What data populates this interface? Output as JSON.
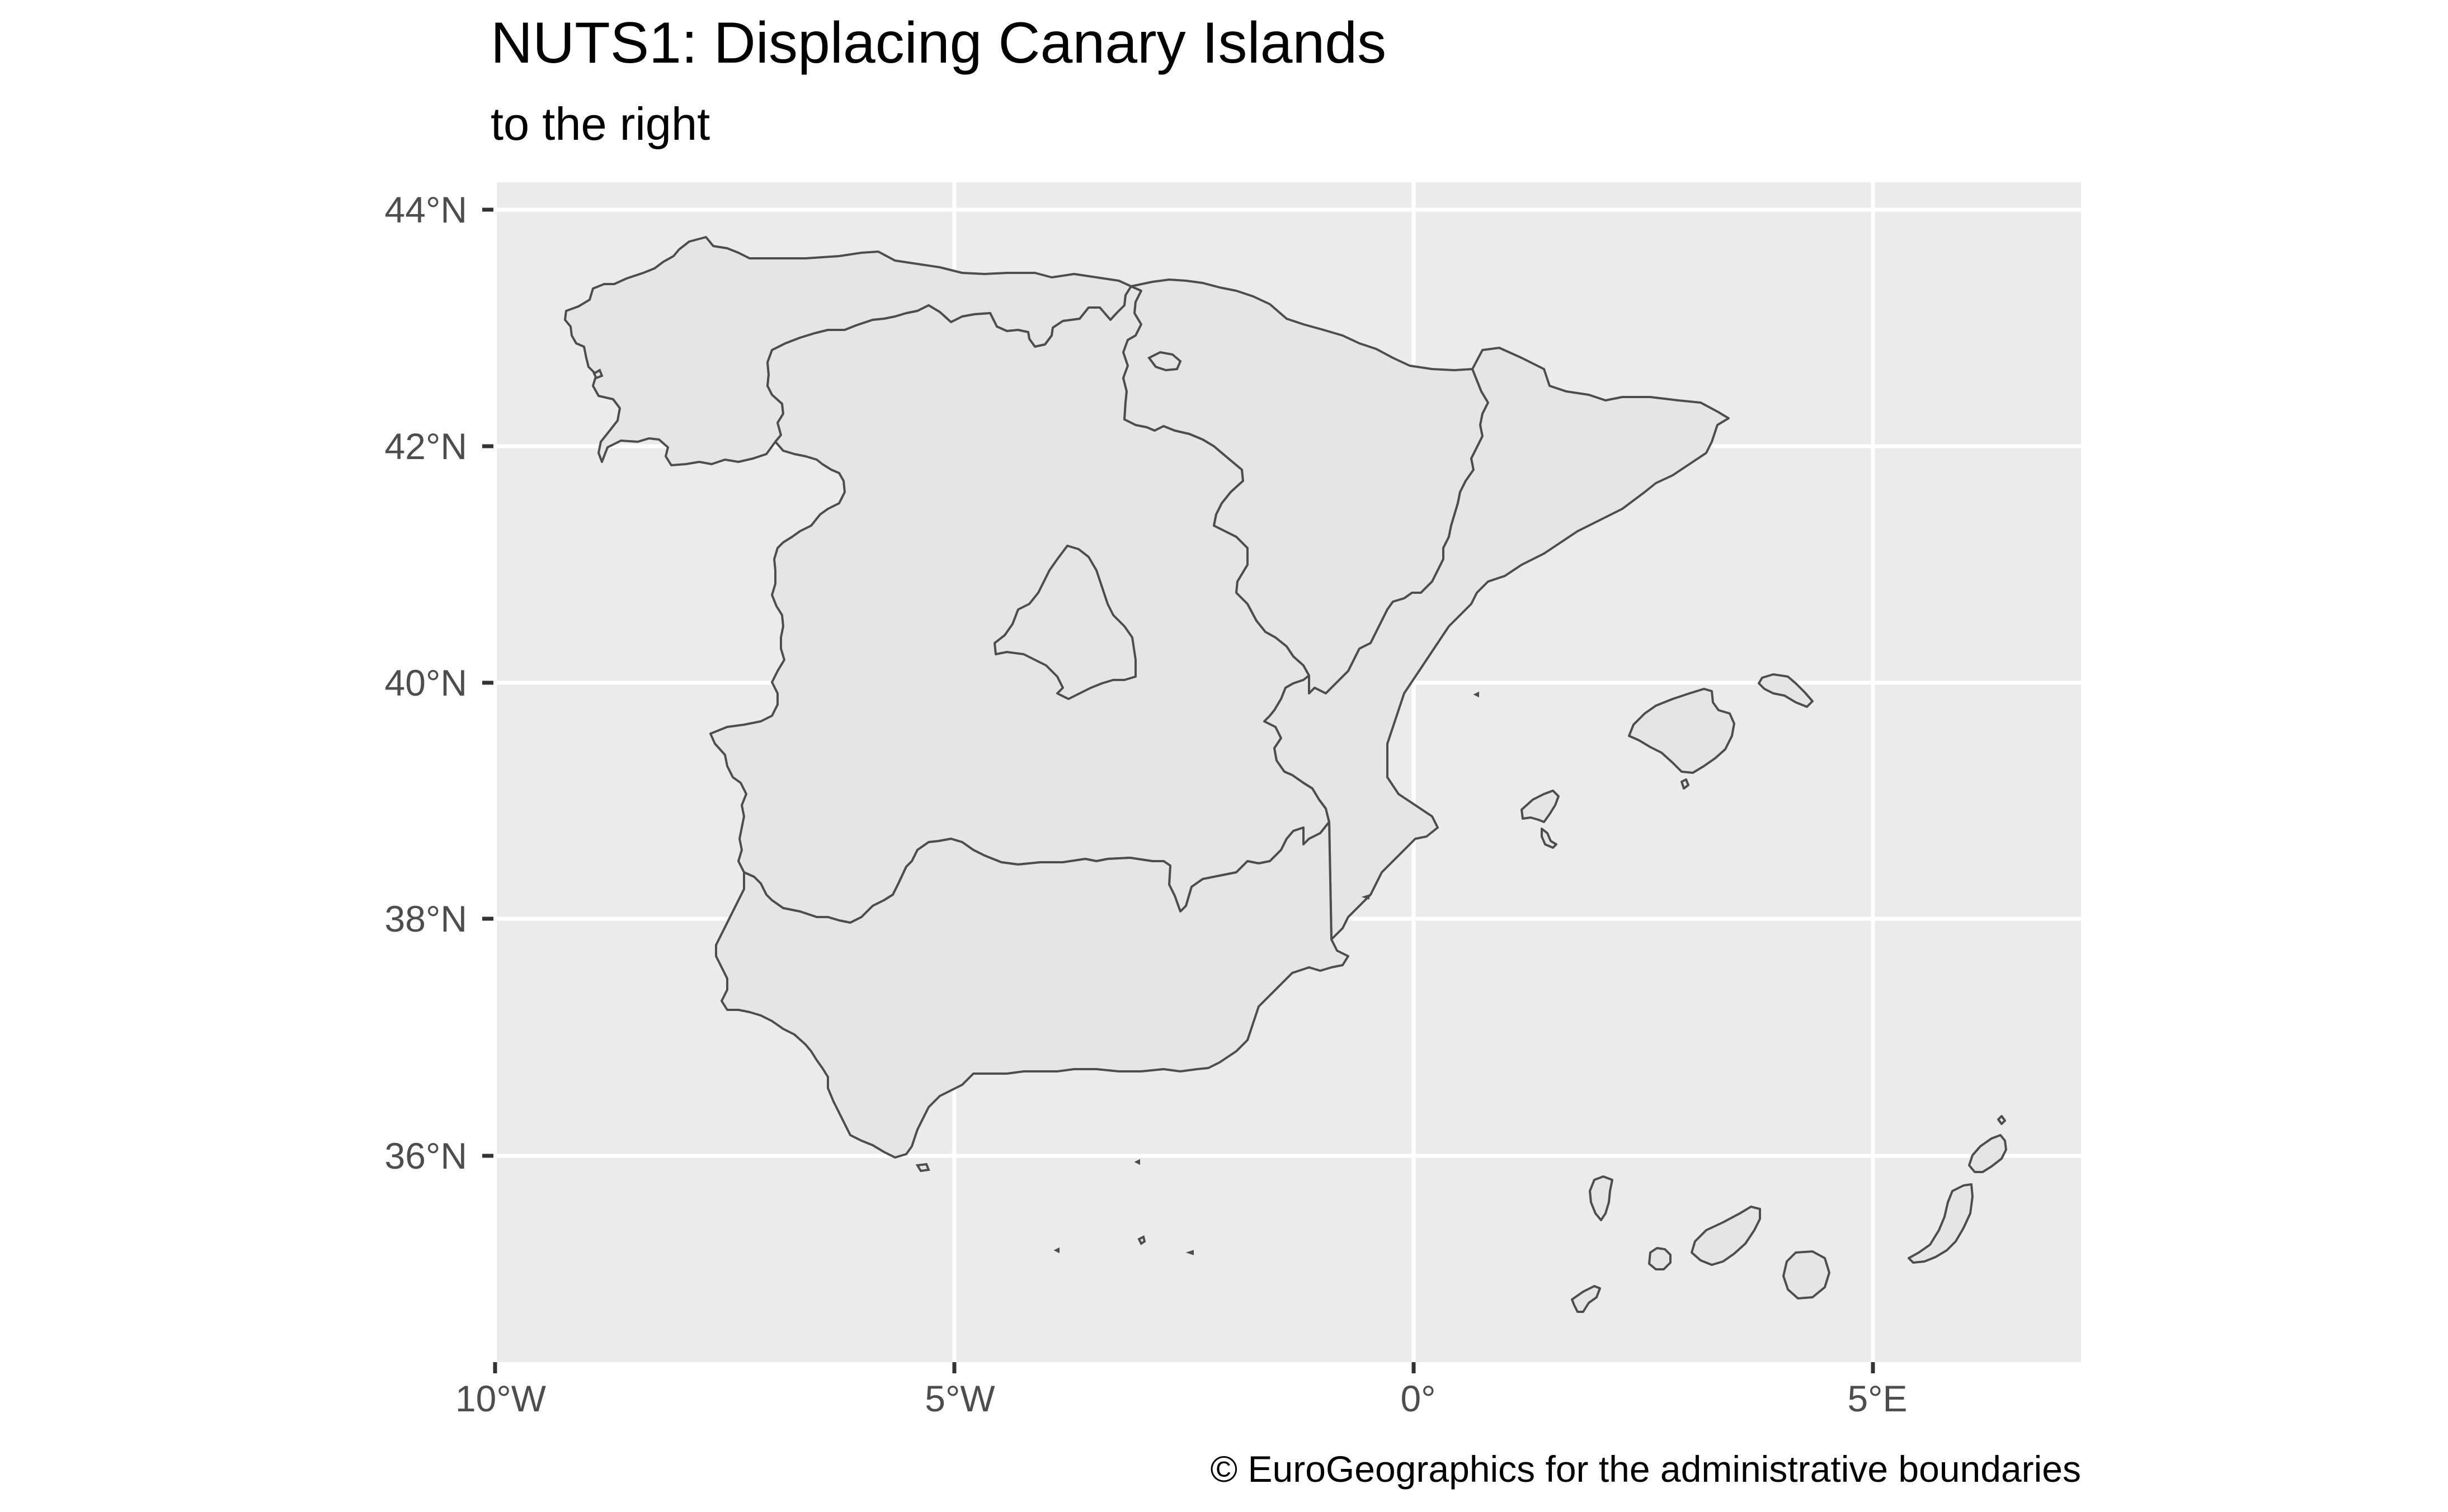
{
  "title": "NUTS1: Displacing Canary Islands",
  "subtitle": "to the right",
  "caption": "© EuroGeographics for the administrative boundaries",
  "axes": {
    "x_ticks": [
      "10°W",
      "5°W",
      "0°",
      "5°E"
    ],
    "y_ticks": [
      "44°N",
      "42°N",
      "40°N",
      "38°N",
      "36°N"
    ]
  },
  "colors": {
    "panel_background": "#ebebeb",
    "region_fill": "#e5e5e5",
    "region_border": "#4d4d4d",
    "grid": "#ffffff",
    "tick_text": "#4d4d4d"
  },
  "map": {
    "regions": [
      "galicia-asturias-cantabria",
      "castilla-y-leon-castilla-la-mancha-extremadura",
      "pais-vasco-navarra-la-rioja-aragon",
      "cataluna-valencia",
      "madrid",
      "andalucia-murcia",
      "balearic-islands",
      "canary-islands-displaced"
    ]
  }
}
